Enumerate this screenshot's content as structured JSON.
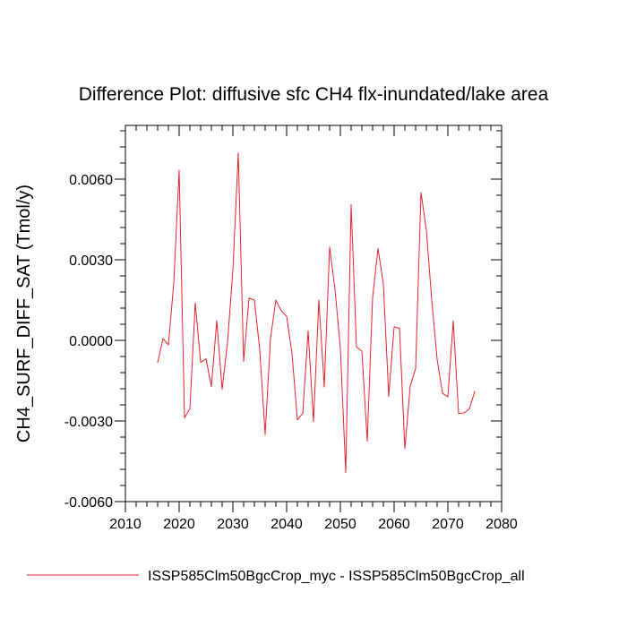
{
  "chart_data": {
    "type": "line",
    "title": "Difference Plot: diffusive sfc CH4 flx-inundated/lake area",
    "xlabel": "",
    "ylabel": "CH4_SURF_DIFF_SAT  (Tmol/y)",
    "xlim": [
      2010,
      2080
    ],
    "ylim": [
      -0.006,
      0.008
    ],
    "xticks": [
      2010,
      2020,
      2030,
      2040,
      2050,
      2060,
      2070,
      2080
    ],
    "xtick_labels": [
      "2010",
      "2020",
      "2030",
      "2040",
      "2050",
      "2060",
      "2070",
      "2080"
    ],
    "yticks": [
      -0.006,
      -0.003,
      0.0,
      0.003,
      0.006
    ],
    "ytick_labels": [
      "-0.0060",
      "-0.0030",
      "0.0000",
      "0.0030",
      "0.0060"
    ],
    "grid": false,
    "legend_position": "bottom",
    "series": [
      {
        "name": "ISSP585Clm50BgcCrop_myc - ISSP585Clm50BgcCrop_all",
        "color": "#e8202a",
        "x": [
          2016,
          2017,
          2018,
          2019,
          2020,
          2021,
          2022,
          2023,
          2024,
          2025,
          2026,
          2027,
          2028,
          2029,
          2030,
          2031,
          2032,
          2033,
          2034,
          2035,
          2036,
          2037,
          2038,
          2039,
          2040,
          2041,
          2042,
          2043,
          2044,
          2045,
          2046,
          2047,
          2048,
          2049,
          2050,
          2051,
          2052,
          2053,
          2054,
          2055,
          2056,
          2057,
          2058,
          2059,
          2060,
          2061,
          2062,
          2063,
          2064,
          2065,
          2066,
          2067,
          2068,
          2069,
          2070,
          2071,
          2072,
          2073,
          2074,
          2075
        ],
        "y": [
          -0.00083,
          7e-05,
          -0.00017,
          0.00213,
          0.00633,
          -0.00288,
          -0.00255,
          0.0014,
          -0.00082,
          -0.00068,
          -0.00172,
          0.00073,
          -0.00182,
          -8e-05,
          0.0026,
          0.00697,
          -0.00078,
          0.00157,
          0.0015,
          -0.00035,
          -0.0035,
          7e-05,
          0.0015,
          0.0011,
          0.0009,
          -0.0005,
          -0.00295,
          -0.00272,
          0.00035,
          -0.00302,
          0.0015,
          -0.00173,
          0.00347,
          0.0019,
          -0.0003,
          -0.00492,
          0.00505,
          -0.00025,
          -0.0004,
          -0.00375,
          0.0016,
          0.00342,
          0.0021,
          -0.00208,
          0.0005,
          0.00045,
          -0.00403,
          -0.0017,
          -0.00105,
          0.0055,
          0.0041,
          0.0015,
          -0.0007,
          -0.00197,
          -0.0021,
          0.00072,
          -0.00272,
          -0.0027,
          -0.00255,
          -0.0019
        ]
      }
    ]
  }
}
